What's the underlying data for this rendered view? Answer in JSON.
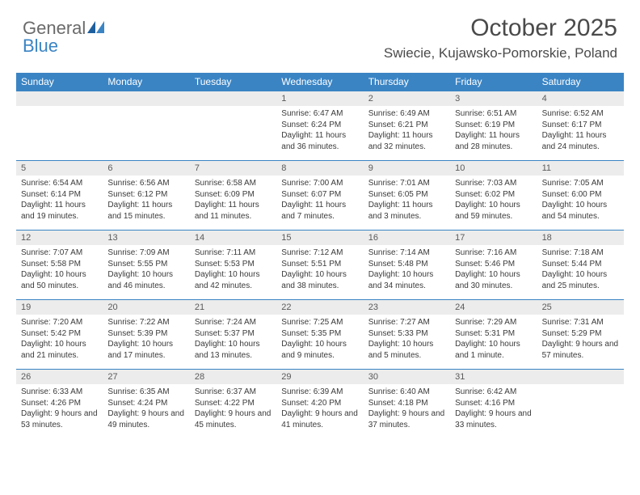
{
  "logo": {
    "word1": "General",
    "word2": "Blue"
  },
  "title": "October 2025",
  "location": "Swiecie, Kujawsko-Pomorskie, Poland",
  "weekday_bg": "#3a84c4",
  "daynum_bg": "#ececec",
  "weekdays": [
    "Sunday",
    "Monday",
    "Tuesday",
    "Wednesday",
    "Thursday",
    "Friday",
    "Saturday"
  ],
  "weeks": [
    {
      "nums": [
        "",
        "",
        "",
        "1",
        "2",
        "3",
        "4"
      ],
      "details": [
        "",
        "",
        "",
        "Sunrise: 6:47 AM\nSunset: 6:24 PM\nDaylight: 11 hours and 36 minutes.",
        "Sunrise: 6:49 AM\nSunset: 6:21 PM\nDaylight: 11 hours and 32 minutes.",
        "Sunrise: 6:51 AM\nSunset: 6:19 PM\nDaylight: 11 hours and 28 minutes.",
        "Sunrise: 6:52 AM\nSunset: 6:17 PM\nDaylight: 11 hours and 24 minutes."
      ]
    },
    {
      "nums": [
        "5",
        "6",
        "7",
        "8",
        "9",
        "10",
        "11"
      ],
      "details": [
        "Sunrise: 6:54 AM\nSunset: 6:14 PM\nDaylight: 11 hours and 19 minutes.",
        "Sunrise: 6:56 AM\nSunset: 6:12 PM\nDaylight: 11 hours and 15 minutes.",
        "Sunrise: 6:58 AM\nSunset: 6:09 PM\nDaylight: 11 hours and 11 minutes.",
        "Sunrise: 7:00 AM\nSunset: 6:07 PM\nDaylight: 11 hours and 7 minutes.",
        "Sunrise: 7:01 AM\nSunset: 6:05 PM\nDaylight: 11 hours and 3 minutes.",
        "Sunrise: 7:03 AM\nSunset: 6:02 PM\nDaylight: 10 hours and 59 minutes.",
        "Sunrise: 7:05 AM\nSunset: 6:00 PM\nDaylight: 10 hours and 54 minutes."
      ]
    },
    {
      "nums": [
        "12",
        "13",
        "14",
        "15",
        "16",
        "17",
        "18"
      ],
      "details": [
        "Sunrise: 7:07 AM\nSunset: 5:58 PM\nDaylight: 10 hours and 50 minutes.",
        "Sunrise: 7:09 AM\nSunset: 5:55 PM\nDaylight: 10 hours and 46 minutes.",
        "Sunrise: 7:11 AM\nSunset: 5:53 PM\nDaylight: 10 hours and 42 minutes.",
        "Sunrise: 7:12 AM\nSunset: 5:51 PM\nDaylight: 10 hours and 38 minutes.",
        "Sunrise: 7:14 AM\nSunset: 5:48 PM\nDaylight: 10 hours and 34 minutes.",
        "Sunrise: 7:16 AM\nSunset: 5:46 PM\nDaylight: 10 hours and 30 minutes.",
        "Sunrise: 7:18 AM\nSunset: 5:44 PM\nDaylight: 10 hours and 25 minutes."
      ]
    },
    {
      "nums": [
        "19",
        "20",
        "21",
        "22",
        "23",
        "24",
        "25"
      ],
      "details": [
        "Sunrise: 7:20 AM\nSunset: 5:42 PM\nDaylight: 10 hours and 21 minutes.",
        "Sunrise: 7:22 AM\nSunset: 5:39 PM\nDaylight: 10 hours and 17 minutes.",
        "Sunrise: 7:24 AM\nSunset: 5:37 PM\nDaylight: 10 hours and 13 minutes.",
        "Sunrise: 7:25 AM\nSunset: 5:35 PM\nDaylight: 10 hours and 9 minutes.",
        "Sunrise: 7:27 AM\nSunset: 5:33 PM\nDaylight: 10 hours and 5 minutes.",
        "Sunrise: 7:29 AM\nSunset: 5:31 PM\nDaylight: 10 hours and 1 minute.",
        "Sunrise: 7:31 AM\nSunset: 5:29 PM\nDaylight: 9 hours and 57 minutes."
      ]
    },
    {
      "nums": [
        "26",
        "27",
        "28",
        "29",
        "30",
        "31",
        ""
      ],
      "details": [
        "Sunrise: 6:33 AM\nSunset: 4:26 PM\nDaylight: 9 hours and 53 minutes.",
        "Sunrise: 6:35 AM\nSunset: 4:24 PM\nDaylight: 9 hours and 49 minutes.",
        "Sunrise: 6:37 AM\nSunset: 4:22 PM\nDaylight: 9 hours and 45 minutes.",
        "Sunrise: 6:39 AM\nSunset: 4:20 PM\nDaylight: 9 hours and 41 minutes.",
        "Sunrise: 6:40 AM\nSunset: 4:18 PM\nDaylight: 9 hours and 37 minutes.",
        "Sunrise: 6:42 AM\nSunset: 4:16 PM\nDaylight: 9 hours and 33 minutes.",
        ""
      ]
    }
  ]
}
